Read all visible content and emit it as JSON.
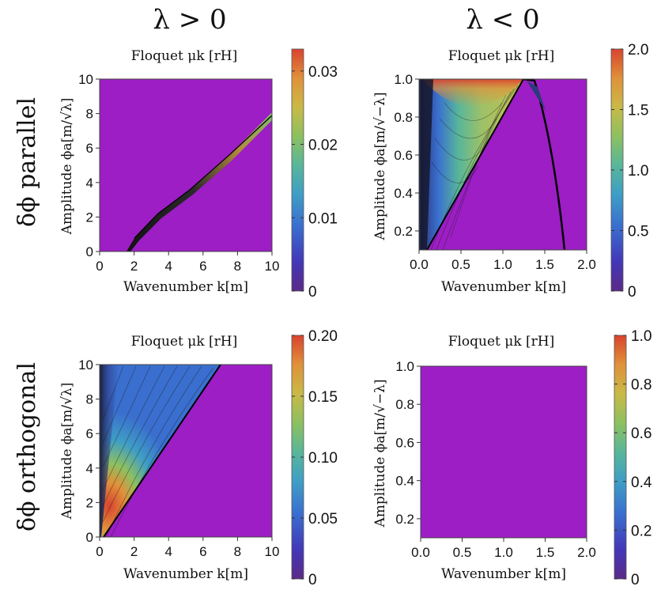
{
  "column_titles": [
    "λ > 0",
    "λ < 0"
  ],
  "row_titles": [
    "δϕ parallel",
    "δϕ orthogonal"
  ],
  "colors": {
    "background": "#9c1ec4",
    "colormap": [
      "#5b2a86",
      "#4337b8",
      "#3a6fcf",
      "#3f9ec5",
      "#58b69a",
      "#8dc060",
      "#c9b947",
      "#e0913a",
      "#d9432f"
    ]
  },
  "chart_data": [
    {
      "id": "top-left",
      "type": "heatmap",
      "title": "Floquet μk [rH]",
      "xlabel": "Wavenumber k[m]",
      "ylabel": "Amplitude ϕa[m/√λ]",
      "xlim": [
        0,
        10
      ],
      "ylim": [
        0,
        10
      ],
      "xticks": [
        0,
        2,
        4,
        6,
        8,
        10
      ],
      "yticks": [
        0,
        2,
        4,
        6,
        8,
        10
      ],
      "xtick_labels": [
        "0",
        "2",
        "4",
        "6",
        "8",
        "10"
      ],
      "ytick_labels": [
        "0",
        "2",
        "4",
        "6",
        "8",
        "10"
      ],
      "colorbar": {
        "min": 0,
        "max": 0.033,
        "ticks": [
          0,
          0.01,
          0.02,
          0.03
        ],
        "tick_labels": [
          "0",
          "0.01",
          "0.02",
          "0.03"
        ]
      },
      "feature": "Narrow instability band from k≈1.6 at ϕa≈0 rising to k≈10 at ϕa≈8; peak ≈0.03 near upper end"
    },
    {
      "id": "top-right",
      "type": "heatmap",
      "title": "Floquet μk [rH]",
      "xlabel": "Wavenumber k[m]",
      "ylabel": "Amplitude ϕa[m/√−λ]",
      "xlim": [
        0,
        2
      ],
      "ylim": [
        0.1,
        1.0
      ],
      "xticks": [
        0,
        0.5,
        1.0,
        1.5,
        2.0
      ],
      "yticks": [
        0.2,
        0.4,
        0.6,
        0.8,
        1.0
      ],
      "xtick_labels": [
        "0.0",
        "0.5",
        "1.0",
        "1.5",
        "2.0"
      ],
      "ytick_labels": [
        "0.2",
        "0.4",
        "0.6",
        "0.8",
        "1.0"
      ],
      "colorbar": {
        "min": 0,
        "max": 2.0,
        "ticks": [
          0,
          0.5,
          1.0,
          1.5,
          2.0
        ],
        "tick_labels": [
          "0",
          "0.5",
          "1.0",
          "1.5",
          "2.0"
        ]
      },
      "feature": "Triangular instability region between k=0 and line k≈1.25·ϕa, peak ≈2.0 near ϕa=1, k≈0.6; thin band from k≈1.25 to 1.75"
    },
    {
      "id": "bottom-left",
      "type": "heatmap",
      "title": "Floquet μk [rH]",
      "xlabel": "Wavenumber k[m]",
      "ylabel": "Amplitude ϕa[m/√λ]",
      "xlim": [
        0,
        10
      ],
      "ylim": [
        0,
        10
      ],
      "xticks": [
        0,
        2,
        4,
        6,
        8,
        10
      ],
      "yticks": [
        0,
        2,
        4,
        6,
        8,
        10
      ],
      "xtick_labels": [
        "0",
        "2",
        "4",
        "6",
        "8",
        "10"
      ],
      "ytick_labels": [
        "0",
        "2",
        "4",
        "6",
        "8",
        "10"
      ],
      "colorbar": {
        "min": 0,
        "max": 0.2,
        "ticks": [
          0,
          0.05,
          0.1,
          0.15,
          0.2
        ],
        "tick_labels": [
          "0",
          "0.05",
          "0.10",
          "0.15",
          "0.20"
        ]
      },
      "feature": "Triangular region k < 0.7·ϕa; peak ≈0.2 near k≈0.8, ϕa≈1.5"
    },
    {
      "id": "bottom-right",
      "type": "heatmap",
      "title": "Floquet μk [rH]",
      "xlabel": "Wavenumber k[m]",
      "ylabel": "Amplitude ϕa[m/√−λ]",
      "xlim": [
        0,
        2
      ],
      "ylim": [
        0.1,
        1.0
      ],
      "xticks": [
        0,
        0.5,
        1.0,
        1.5,
        2.0
      ],
      "yticks": [
        0.2,
        0.4,
        0.6,
        0.8,
        1.0
      ],
      "xtick_labels": [
        "0.0",
        "0.5",
        "1.0",
        "1.5",
        "2.0"
      ],
      "ytick_labels": [
        "0.2",
        "0.4",
        "0.6",
        "0.8",
        "1.0"
      ],
      "colorbar": {
        "min": 0,
        "max": 1.0,
        "ticks": [
          0,
          0.2,
          0.4,
          0.6,
          0.8,
          1.0
        ],
        "tick_labels": [
          "0",
          "0.2",
          "0.4",
          "0.6",
          "0.8",
          "1.0"
        ]
      },
      "feature": "Uniformly zero (no instability)"
    }
  ]
}
